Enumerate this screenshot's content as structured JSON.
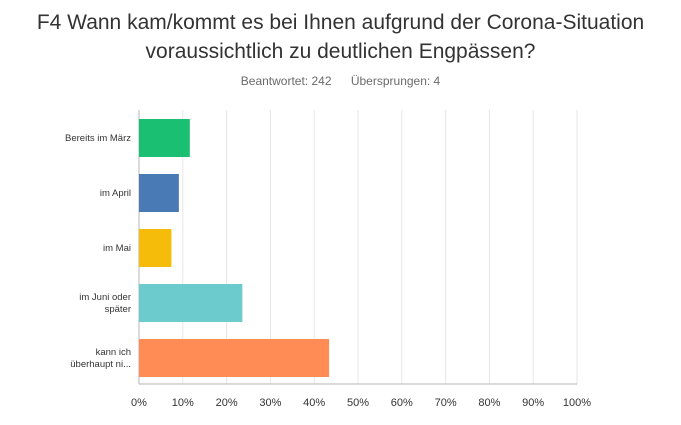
{
  "header": {
    "title_line1": "F4 Wann kam/kommt es bei Ihnen aufgrund der Corona-Situation",
    "title_line2": "voraussichtlich zu deutlichen Engpässen?",
    "answered": "Beantwortet: 242",
    "skipped": "Übersprungen: 4"
  },
  "chart_data": {
    "type": "bar",
    "orientation": "horizontal",
    "categories": [
      [
        "Bereits im März"
      ],
      [
        "im April"
      ],
      [
        "im Mai"
      ],
      [
        "im Juni oder",
        "später"
      ],
      [
        "kann ich",
        "überhaupt ni..."
      ]
    ],
    "values": [
      11.6,
      9.1,
      7.4,
      23.6,
      43.4
    ],
    "colors": [
      "#1bbf72",
      "#4a7ab5",
      "#f5bd0a",
      "#6ccbcc",
      "#ff8c54"
    ],
    "xlim": [
      0,
      100
    ],
    "xticks": [
      "0%",
      "10%",
      "20%",
      "30%",
      "40%",
      "50%",
      "60%",
      "70%",
      "80%",
      "90%",
      "100%"
    ],
    "grid": true
  }
}
